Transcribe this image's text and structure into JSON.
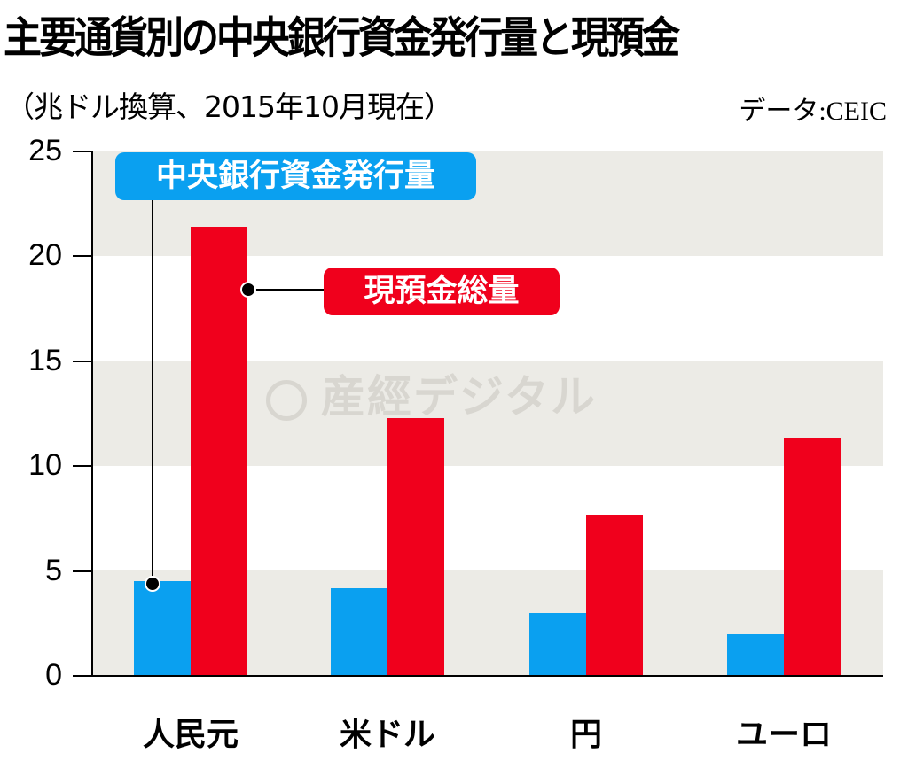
{
  "header": {
    "title": "主要通貨別の中央銀行資金発行量と現預金",
    "subtitle": "（兆ドル換算、2015年10月現在）",
    "source": "データ:CEIC"
  },
  "watermark": "産經デジタル",
  "colors": {
    "central_bank": "#0aa0f0",
    "deposits": "#f0001c",
    "band": "#ecebe6"
  },
  "chart_data": {
    "type": "bar",
    "title": "主要通貨別の中央銀行資金発行量と現預金",
    "subtitle": "（兆ドル換算、2015年10月現在）",
    "source": "データ:CEIC",
    "xlabel": "",
    "ylabel": "兆ドル",
    "ylim": [
      0,
      25
    ],
    "yticks": [
      "0",
      "5",
      "10",
      "15",
      "20",
      "25"
    ],
    "categories": [
      "人民元",
      "米ドル",
      "円",
      "ユーロ"
    ],
    "series": [
      {
        "name": "中央銀行資金発行量",
        "color": "#0aa0f0",
        "values": [
          4.5,
          4.2,
          3.0,
          2.0
        ]
      },
      {
        "name": "現預金総量",
        "color": "#f0001c",
        "values": [
          21.4,
          12.3,
          7.7,
          11.3
        ]
      }
    ],
    "grid": "alternating horizontal bands",
    "legend_position": "callout labels with leader lines"
  }
}
